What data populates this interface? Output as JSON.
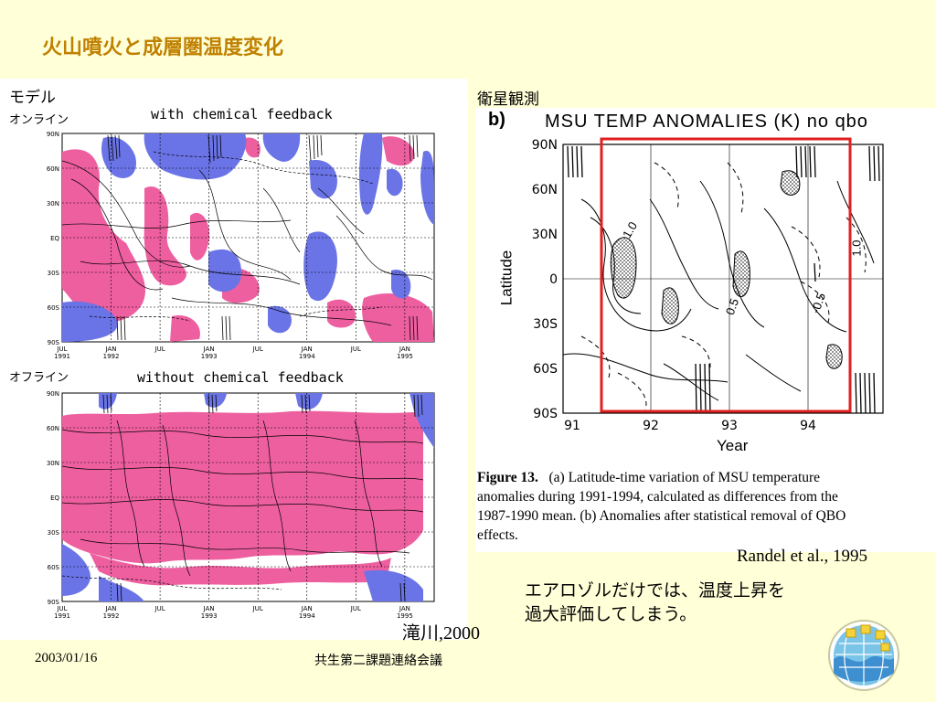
{
  "slide": {
    "title": "火山噴火と成層圏温度変化",
    "footer_date": "2003/01/16",
    "footer_center": "共生第二課題連絡会議"
  },
  "left": {
    "model_label": "モデル",
    "online_label": "オンライン",
    "offline_label": "オフライン",
    "top_plot_title": "with chemical feedback",
    "bottom_plot_title": "without chemical feedback",
    "y_ticks": [
      "90N",
      "60N",
      "30N",
      "EQ",
      "30S",
      "60S",
      "90S"
    ],
    "x_ticks": [
      [
        "JUL",
        "1991"
      ],
      [
        "JAN",
        "1992"
      ],
      [
        "JUL",
        ""
      ],
      [
        "JAN",
        "1993"
      ],
      [
        "JUL",
        ""
      ],
      [
        "JAN",
        "1994"
      ],
      [
        "JUL",
        ""
      ],
      [
        "JAN",
        "1995"
      ]
    ],
    "bottom_x_ticks": [
      [
        "JUL",
        "1991"
      ],
      [
        "JAN",
        "1992"
      ],
      [
        "JUL",
        ""
      ],
      [
        "JAN",
        "1993"
      ],
      [
        "JUL",
        ""
      ],
      [
        "JAN",
        "1994"
      ],
      [
        "JUL",
        ""
      ],
      [
        "JAN",
        "1995"
      ]
    ],
    "citation": "滝川,2000"
  },
  "right": {
    "satellite_label": "衛星観測",
    "panel_letter": "b)",
    "plot_title": "MSU TEMP ANOMALIES (K) no qbo",
    "y_ticks": [
      "90N",
      "60N",
      "30N",
      "0",
      "30S",
      "60S",
      "90S"
    ],
    "x_ticks": [
      "91",
      "92",
      "93",
      "94"
    ],
    "xlabel": "Year",
    "ylabel": "Latitude",
    "contour_labels": [
      "1.0",
      "0.5",
      "-0.5",
      "1.0"
    ],
    "figure_caption_bold": "Figure 13.",
    "figure_caption_lines": [
      "(a) Latitude-time variation of MSU temperature",
      "anomalies during 1991-1994, calculated as differences from the",
      "1987-1990 mean.  (b) Anomalies after statistical removal of QBO",
      "effects."
    ],
    "citation": "Randel et al., 1995",
    "note_lines": [
      "エアロゾルだけでは、温度上昇を",
      "過大評価してしまう。"
    ]
  },
  "colors": {
    "title": "#c08000",
    "background": "#ffffd8",
    "positive_fill": "#ee5fa0",
    "negative_fill": "#6a74e6",
    "highlight_box": "#e02020"
  },
  "icons": {
    "logo": "globe-logo-icon"
  }
}
